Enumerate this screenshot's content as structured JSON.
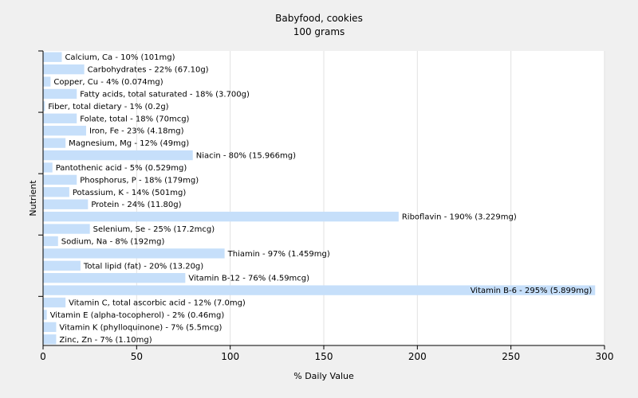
{
  "chart_data": {
    "type": "bar",
    "orientation": "horizontal",
    "title": "Babyfood, cookies",
    "subtitle": "100 grams",
    "xlabel": "% Daily Value",
    "ylabel": "Nutrient",
    "xlim": [
      0,
      300
    ],
    "xticks": [
      "0",
      "50",
      "100",
      "150",
      "200",
      "250",
      "300"
    ],
    "grid": "vertical",
    "bar_color": "#c6dffa",
    "categories": [
      "Calcium, Ca",
      "Carbohydrates",
      "Copper, Cu",
      "Fatty acids, total saturated",
      "Fiber, total dietary",
      "Folate, total",
      "Iron, Fe",
      "Magnesium, Mg",
      "Niacin",
      "Pantothenic acid",
      "Phosphorus, P",
      "Potassium, K",
      "Protein",
      "Riboflavin",
      "Selenium, Se",
      "Sodium, Na",
      "Thiamin",
      "Total lipid (fat)",
      "Vitamin B-12",
      "Vitamin B-6",
      "Vitamin C, total ascorbic acid",
      "Vitamin E (alpha-tocopherol)",
      "Vitamin K (phylloquinone)",
      "Zinc, Zn"
    ],
    "values": [
      10,
      22,
      4,
      18,
      1,
      18,
      23,
      12,
      80,
      5,
      18,
      14,
      24,
      190,
      25,
      8,
      97,
      20,
      76,
      295,
      12,
      2,
      7,
      7
    ],
    "labels": [
      "Calcium, Ca - 10% (101mg)",
      "Carbohydrates - 22% (67.10g)",
      "Copper, Cu - 4% (0.074mg)",
      "Fatty acids, total saturated - 18% (3.700g)",
      "Fiber, total dietary - 1% (0.2g)",
      "Folate, total - 18% (70mcg)",
      "Iron, Fe - 23% (4.18mg)",
      "Magnesium, Mg - 12% (49mg)",
      "Niacin - 80% (15.966mg)",
      "Pantothenic acid - 5% (0.529mg)",
      "Phosphorus, P - 18% (179mg)",
      "Potassium, K - 14% (501mg)",
      "Protein - 24% (11.80g)",
      "Riboflavin - 190% (3.229mg)",
      "Selenium, Se - 25% (17.2mcg)",
      "Sodium, Na - 8% (192mg)",
      "Thiamin - 97% (1.459mg)",
      "Total lipid (fat) - 20% (13.20g)",
      "Vitamin B-12 - 76% (4.59mcg)",
      "Vitamin B-6 - 295% (5.899mg)",
      "Vitamin C, total ascorbic acid - 12% (7.0mg)",
      "Vitamin E (alpha-tocopherol) - 2% (0.46mg)",
      "Vitamin K (phylloquinone) - 7% (5.5mcg)",
      "Zinc, Zn - 7% (1.10mg)"
    ]
  }
}
